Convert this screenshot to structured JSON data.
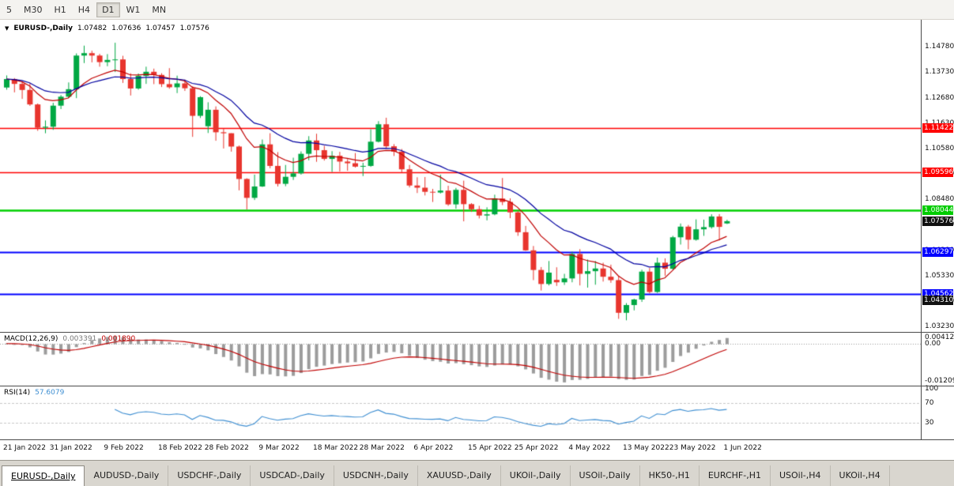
{
  "toolbar": {
    "timeframes": [
      "5",
      "M30",
      "H1",
      "H4",
      "D1",
      "W1",
      "MN"
    ],
    "active_timeframe": "D1"
  },
  "chart": {
    "symbol_label": "EURUSD-,Daily",
    "ohlc": {
      "open": "1.07482",
      "high": "1.07636",
      "low": "1.07457",
      "close": "1.07576"
    }
  },
  "price_axis": {
    "ticks": [
      "1.14780",
      "1.13730",
      "1.12680",
      "1.11630",
      "1.10580",
      "1.09530",
      "1.08480",
      "1.07430",
      "1.06380",
      "1.05330",
      "1.04280",
      "1.03230"
    ],
    "badges": [
      {
        "label": "1.11422",
        "value": 1.11422,
        "bg": "#FF0000"
      },
      {
        "label": "1.09596",
        "value": 1.09596,
        "bg": "#FF0000"
      },
      {
        "label": "1.08044",
        "value": 1.08044,
        "bg": "#00CC00"
      },
      {
        "label": "1.07576",
        "value": 1.07576,
        "bg": "#111111"
      },
      {
        "label": "1.06297",
        "value": 1.06297,
        "bg": "#0000FF"
      },
      {
        "label": "1.04562",
        "value": 1.04562,
        "bg": "#0000FF"
      },
      {
        "label": "1.04310",
        "value": 1.0431,
        "bg": "#111111"
      }
    ]
  },
  "indicators": {
    "macd": {
      "name": "MACD(12,26,9)",
      "fast": 12,
      "slow": 26,
      "signal": 9,
      "main_value": "0.003391",
      "signal_value": "0.001890",
      "axis_labels": [
        "0.004128",
        "0.00",
        "-0.01209"
      ],
      "hist_color": "#9C9C9C",
      "signal_color": "#C00000"
    },
    "rsi": {
      "name": "RSI(14)",
      "period": 14,
      "value": "57.6079",
      "axis_labels": [
        "100",
        "70",
        "30"
      ],
      "levels": [
        70,
        30
      ],
      "line_color": "#3F8FD2",
      "level_color": "#C8C8C8"
    }
  },
  "chart_data": {
    "type": "candlestick",
    "title": "EURUSD-,Daily",
    "symbol": "EURUSD",
    "period": "Daily",
    "price_range": [
      1.03,
      1.159
    ],
    "up_color": "#00A843",
    "down_color": "#E8352E",
    "levels": [
      {
        "price": 1.11422,
        "color": "#FF0000",
        "width": 1.5
      },
      {
        "price": 1.09596,
        "color": "#FF0000",
        "width": 1.5
      },
      {
        "price": 1.08044,
        "color": "#00D000",
        "width": 2.5
      },
      {
        "price": 1.06297,
        "color": "#0000FF",
        "width": 2
      },
      {
        "price": 1.04562,
        "color": "#0000FF",
        "width": 2
      }
    ],
    "overlays": [
      {
        "name": "ma-fast",
        "type": "ema",
        "period": 10,
        "color": "#C00000"
      },
      {
        "name": "ma-slow",
        "type": "ema",
        "period": 20,
        "color": "#0000A0"
      }
    ],
    "x_axis_labels": [
      {
        "text": "21 Jan 2022",
        "bar": 0
      },
      {
        "text": "31 Jan 2022",
        "bar": 6
      },
      {
        "text": "9 Feb 2022",
        "bar": 13
      },
      {
        "text": "18 Feb 2022",
        "bar": 20
      },
      {
        "text": "28 Feb 2022",
        "bar": 26
      },
      {
        "text": "9 Mar 2022",
        "bar": 33
      },
      {
        "text": "18 Mar 2022",
        "bar": 40
      },
      {
        "text": "28 Mar 2022",
        "bar": 46
      },
      {
        "text": "6 Apr 2022",
        "bar": 53
      },
      {
        "text": "15 Apr 2022",
        "bar": 60
      },
      {
        "text": "25 Apr 2022",
        "bar": 66
      },
      {
        "text": "4 May 2022",
        "bar": 73
      },
      {
        "text": "13 May 2022",
        "bar": 80
      },
      {
        "text": "23 May 2022",
        "bar": 86
      },
      {
        "text": "1 Jun 2022",
        "bar": 93
      }
    ],
    "candles": [
      [
        1.131,
        1.136,
        1.1301,
        1.1345
      ],
      [
        1.1345,
        1.1349,
        1.129,
        1.1325
      ],
      [
        1.1325,
        1.1335,
        1.1263,
        1.13
      ],
      [
        1.13,
        1.1328,
        1.1234,
        1.124
      ],
      [
        1.124,
        1.1244,
        1.1131,
        1.1144
      ],
      [
        1.1144,
        1.1174,
        1.1121,
        1.1148
      ],
      [
        1.1148,
        1.1247,
        1.1135,
        1.1235
      ],
      [
        1.1235,
        1.1279,
        1.1221,
        1.1272
      ],
      [
        1.1272,
        1.1331,
        1.1266,
        1.1303
      ],
      [
        1.1303,
        1.1451,
        1.1266,
        1.1442
      ],
      [
        1.1442,
        1.1483,
        1.1411,
        1.1452
      ],
      [
        1.1452,
        1.1462,
        1.1414,
        1.1442
      ],
      [
        1.1442,
        1.1449,
        1.1396,
        1.1415
      ],
      [
        1.1415,
        1.1448,
        1.1398,
        1.1424
      ],
      [
        1.1424,
        1.1495,
        1.1374,
        1.1426
      ],
      [
        1.1426,
        1.1441,
        1.1329,
        1.1345
      ],
      [
        1.1345,
        1.1369,
        1.1277,
        1.1306
      ],
      [
        1.1306,
        1.1368,
        1.1301,
        1.1358
      ],
      [
        1.1358,
        1.1396,
        1.1325,
        1.1375
      ],
      [
        1.1375,
        1.1388,
        1.1324,
        1.1362
      ],
      [
        1.1362,
        1.1369,
        1.1312,
        1.1324
      ],
      [
        1.1324,
        1.139,
        1.1305,
        1.1311
      ],
      [
        1.1311,
        1.1359,
        1.1287,
        1.1327
      ],
      [
        1.1327,
        1.1343,
        1.1296,
        1.1307
      ],
      [
        1.1307,
        1.1315,
        1.1106,
        1.1193
      ],
      [
        1.1193,
        1.1274,
        1.1184,
        1.127
      ],
      [
        1.115,
        1.1249,
        1.1122,
        1.1218
      ],
      [
        1.1218,
        1.1232,
        1.109,
        1.1125
      ],
      [
        1.1125,
        1.114,
        1.1058,
        1.1121
      ],
      [
        1.1121,
        1.1121,
        1.1045,
        1.1066
      ],
      [
        1.1066,
        1.107,
        1.0885,
        1.0932
      ],
      [
        1.0932,
        1.0935,
        1.0806,
        1.0854
      ],
      [
        1.0854,
        1.095,
        1.0845,
        1.0901
      ],
      [
        1.0901,
        1.1095,
        1.0899,
        1.1075
      ],
      [
        1.1075,
        1.1121,
        1.0976,
        1.0986
      ],
      [
        1.0986,
        1.1043,
        1.0901,
        1.0912
      ],
      [
        1.0912,
        1.099,
        1.0902,
        1.0941
      ],
      [
        1.0941,
        1.102,
        1.0928,
        1.0955
      ],
      [
        1.0955,
        1.1046,
        1.095,
        1.1036
      ],
      [
        1.1036,
        1.1109,
        1.1009,
        1.1091
      ],
      [
        1.1091,
        1.1119,
        1.1003,
        1.1051
      ],
      [
        1.1051,
        1.1069,
        1.1008,
        1.1015
      ],
      [
        1.1015,
        1.1047,
        1.0961,
        1.1028
      ],
      [
        1.1028,
        1.1044,
        1.0963,
        1.1004
      ],
      [
        1.1004,
        1.1014,
        1.0966,
        1.0997
      ],
      [
        1.0997,
        1.1039,
        1.0979,
        1.0983
      ],
      [
        1.0983,
        1.0999,
        1.0944,
        1.0986
      ],
      [
        1.0986,
        1.1137,
        1.0982,
        1.1086
      ],
      [
        1.1086,
        1.1171,
        1.1083,
        1.1158
      ],
      [
        1.1158,
        1.1185,
        1.1061,
        1.1067
      ],
      [
        1.1067,
        1.1076,
        1.1027,
        1.1045
      ],
      [
        1.1045,
        1.1056,
        1.096,
        1.0972
      ],
      [
        1.0972,
        1.099,
        1.0897,
        1.0905
      ],
      [
        1.0905,
        1.0939,
        1.0874,
        1.0896
      ],
      [
        1.0896,
        1.094,
        1.0864,
        1.0879
      ],
      [
        1.0879,
        1.0891,
        1.0837,
        1.0876
      ],
      [
        1.0876,
        1.095,
        1.0872,
        1.0884
      ],
      [
        1.0884,
        1.0904,
        1.0821,
        1.0827
      ],
      [
        1.0827,
        1.0895,
        1.0809,
        1.0887
      ],
      [
        1.0887,
        1.0925,
        1.0757,
        1.0828
      ],
      [
        1.0828,
        1.0832,
        1.0796,
        1.0807
      ],
      [
        1.0807,
        1.0821,
        1.0769,
        1.0781
      ],
      [
        1.0781,
        1.0815,
        1.0761,
        1.0786
      ],
      [
        1.0786,
        1.0867,
        1.0782,
        1.0851
      ],
      [
        1.0851,
        1.0936,
        1.0824,
        1.0837
      ],
      [
        1.0837,
        1.0852,
        1.077,
        1.0794
      ],
      [
        1.0794,
        1.08,
        1.0697,
        1.0712
      ],
      [
        1.0712,
        1.0738,
        1.0635,
        1.0637
      ],
      [
        1.0637,
        1.0655,
        1.0514,
        1.0556
      ],
      [
        1.0556,
        1.0568,
        1.0471,
        1.0498
      ],
      [
        1.0498,
        1.0593,
        1.0492,
        1.0545
      ],
      [
        1.0515,
        1.0567,
        1.049,
        1.0505
      ],
      [
        1.0505,
        1.054,
        1.0494,
        1.0521
      ],
      [
        1.0521,
        1.0632,
        1.0505,
        1.0622
      ],
      [
        1.0622,
        1.0642,
        1.0492,
        1.054
      ],
      [
        1.054,
        1.0599,
        1.0483,
        1.0551
      ],
      [
        1.0551,
        1.0593,
        1.0495,
        1.0562
      ],
      [
        1.0562,
        1.0586,
        1.0508,
        1.0528
      ],
      [
        1.0528,
        1.0578,
        1.0503,
        1.0514
      ],
      [
        1.0514,
        1.0532,
        1.0354,
        1.0379
      ],
      [
        1.0379,
        1.0419,
        1.0348,
        1.0411
      ],
      [
        1.0411,
        1.0437,
        1.0389,
        1.0434
      ],
      [
        1.0434,
        1.0557,
        1.0424,
        1.0549
      ],
      [
        1.0549,
        1.0564,
        1.0459,
        1.0465
      ],
      [
        1.0465,
        1.0607,
        1.0461,
        1.0586
      ],
      [
        1.0586,
        1.0604,
        1.0532,
        1.0561
      ],
      [
        1.0561,
        1.0697,
        1.0556,
        1.0691
      ],
      [
        1.0691,
        1.0748,
        1.0661,
        1.0735
      ],
      [
        1.0735,
        1.0742,
        1.0641,
        1.0681
      ],
      [
        1.0681,
        1.0765,
        1.0677,
        1.0724
      ],
      [
        1.0724,
        1.0764,
        1.0697,
        1.0733
      ],
      [
        1.0733,
        1.0786,
        1.0727,
        1.0777
      ],
      [
        1.0777,
        1.0787,
        1.0678,
        1.0734
      ],
      [
        1.07482,
        1.07636,
        1.07457,
        1.07576
      ]
    ]
  },
  "tabs": [
    {
      "label": "EURUSD-,Daily",
      "active": true
    },
    {
      "label": "AUDUSD-,Daily",
      "active": false
    },
    {
      "label": "USDCHF-,Daily",
      "active": false
    },
    {
      "label": "USDCAD-,Daily",
      "active": false
    },
    {
      "label": "USDCNH-,Daily",
      "active": false
    },
    {
      "label": "XAUUSD-,Daily",
      "active": false
    },
    {
      "label": "UKOil-,Daily",
      "active": false
    },
    {
      "label": "USOil-,Daily",
      "active": false
    },
    {
      "label": "HK50-,H1",
      "active": false
    },
    {
      "label": "EURCHF-,H1",
      "active": false
    },
    {
      "label": "USOil-,H4",
      "active": false
    },
    {
      "label": "UKOil-,H4",
      "active": false
    }
  ]
}
